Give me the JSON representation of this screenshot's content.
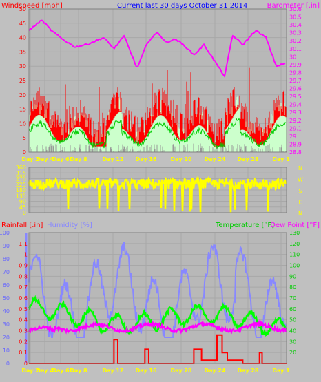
{
  "top_chart": {
    "title": "Current last 30 days October 31 2014",
    "left_label": "Windspeed [mph]",
    "right_label": "Barometer [.in]",
    "left_axis": {
      "min": 0,
      "max": 50,
      "ticks": [
        0,
        5,
        10,
        15,
        20,
        25,
        30,
        35,
        40,
        45,
        50
      ]
    },
    "right_axis": {
      "min": 28.8,
      "max": 30.6,
      "ticks": [
        "28.8",
        "28.9",
        "29",
        "29.1",
        "29.2",
        "29.3",
        "29.4",
        "29.5",
        "29.6",
        "29.7",
        "29.8",
        "29.9",
        "30",
        "30.1",
        "30.2",
        "30.3",
        "30.4",
        "30.5",
        "30.6"
      ]
    },
    "x_labels": [
      "Day 2",
      "Day 4",
      "Day 6",
      "Day 8",
      "Day 12",
      "Day 16",
      "Day 20",
      "Day 24",
      "Day 28",
      "Day 1"
    ]
  },
  "dir_chart": {
    "left_axis": {
      "min": 0,
      "max": 360,
      "ticks": [
        0,
        45,
        90,
        135,
        180,
        225,
        270,
        315,
        360
      ]
    },
    "right_labels": [
      "N",
      "W",
      "S",
      "E",
      "N"
    ]
  },
  "bottom_chart": {
    "rain_label": "Rainfall [.in]",
    "humidity_label": "Humidity [%]",
    "temp_label": "Temperature [°F]",
    "dew_label": "Dew Point [°F]",
    "rain_axis": {
      "min": 0,
      "max": 1.2,
      "ticks": [
        "0",
        "0.1",
        "0.2",
        "0.3",
        "0.4",
        "0.5",
        "0.6",
        "0.7",
        "0.8",
        "0.9",
        "1",
        "1.1"
      ]
    },
    "humidity_axis": {
      "min": 0,
      "max": 100,
      "ticks": [
        0,
        10,
        20,
        30,
        40,
        50,
        60,
        70,
        80,
        90,
        100
      ]
    },
    "temp_axis": {
      "min": 10,
      "max": 130,
      "ticks": [
        20,
        30,
        40,
        50,
        60,
        70,
        80,
        90,
        100,
        110,
        120,
        130
      ]
    },
    "x_labels": [
      "Day 2",
      "Day 4",
      "Day 6",
      "Day 8",
      "Day 12",
      "Day 16",
      "Day 20",
      "Day 24",
      "Day 28",
      "Day 1"
    ]
  },
  "colors": {
    "wind_avg": "#ff0000",
    "wind_gust_fill": "#ccffcc",
    "wind_green": "#00cc00",
    "wind_low": "#c0c0c0",
    "barometer": "#ff00ff",
    "direction": "#ffff00",
    "humidity": "#8888ff",
    "temperature": "#00ff00",
    "dew_point": "#ff00ff",
    "rain": "#ff0000",
    "title": "#0000ff",
    "x_label": "#ffff00"
  },
  "chart_data": [
    {
      "type": "line",
      "title": "Current last 30 days October 31 2014",
      "ylabel": "Windspeed [mph]",
      "ylim": [
        0,
        50
      ],
      "y2label": "Barometer [.in]",
      "y2lim": [
        28.8,
        30.6
      ],
      "x": [
        "Day 2",
        "Day 4",
        "Day 6",
        "Day 8",
        "Day 12",
        "Day 16",
        "Day 20",
        "Day 24",
        "Day 28",
        "Day 1"
      ],
      "series": [
        {
          "name": "Windspeed [mph]",
          "values": [
            12,
            9,
            11,
            10,
            8,
            13,
            9,
            12,
            14,
            10
          ]
        },
        {
          "name": "Barometer [.in]",
          "values": [
            30.32,
            30.45,
            30.18,
            30.13,
            29.97,
            30.02,
            30.21,
            30.19,
            30.28,
            29.9
          ]
        }
      ]
    },
    {
      "type": "scatter",
      "ylim": [
        0,
        360
      ],
      "x": [
        "Day 2",
        "Day 4",
        "Day 6",
        "Day 8",
        "Day 12",
        "Day 16",
        "Day 20",
        "Day 24",
        "Day 28",
        "Day 1"
      ],
      "series": [
        {
          "name": "",
          "values": [
            250,
            270,
            220,
            260,
            240,
            230,
            270,
            210,
            250,
            240
          ]
        }
      ]
    },
    {
      "type": "line",
      "ylabel": "Rainfall [.in]",
      "ylim": [
        0,
        1.2
      ],
      "y2label": "Temperature [°F] Dew Point [°F]",
      "y2lim": [
        10,
        130
      ],
      "x": [
        "Day 2",
        "Day 4",
        "Day 6",
        "Day 8",
        "Day 12",
        "Day 16",
        "Day 20",
        "Day 24",
        "Day 28",
        "Day 1"
      ],
      "series": [
        {
          "name": "Humidity [%]",
          "values": [
            62,
            45,
            52,
            40,
            38,
            62,
            50,
            55,
            68,
            72
          ]
        },
        {
          "name": "Temperature [°F]",
          "values": [
            50,
            62,
            66,
            58,
            52,
            50,
            52,
            56,
            48,
            44
          ]
        },
        {
          "name": "Dew Point [°F]",
          "values": [
            32,
            40,
            44,
            40,
            42,
            40,
            38,
            42,
            38,
            42
          ]
        },
        {
          "name": "Rainfall [.in]",
          "values": [
            0,
            0,
            0,
            0,
            0.22,
            0.13,
            0.13,
            0.26,
            0.1,
            0
          ]
        }
      ]
    }
  ]
}
